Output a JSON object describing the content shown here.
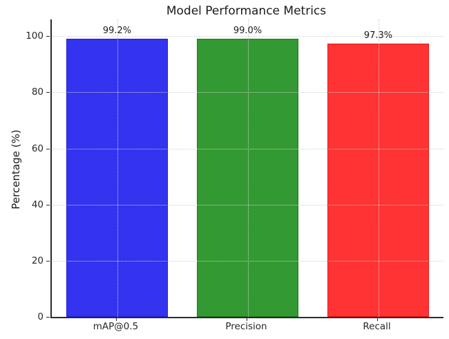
{
  "chart_data": {
    "type": "bar",
    "title": "Model Performance Metrics",
    "ylabel": "Percentage (%)",
    "xlabel": "",
    "categories": [
      "mAP@0.5",
      "Precision",
      "Recall"
    ],
    "values": [
      99.2,
      99.0,
      97.3
    ],
    "value_labels": [
      "99.2%",
      "99.0%",
      "97.3%"
    ],
    "bar_colors": [
      "#3333f0",
      "#339933",
      "#ff3333"
    ],
    "bar_edge_colors": [
      "#1f1fd6",
      "#1e7a1e",
      "#ef1515"
    ],
    "ylim": [
      0,
      106
    ],
    "yticks": [
      "0",
      "20",
      "40",
      "60",
      "80",
      "100"
    ],
    "grid": "dotted, horizontal at yticks and vertical at bar centers, drawn above bars",
    "legend_position": "none",
    "colors": {
      "background": "#ffffff",
      "spine": "#2a2a2a",
      "grid": "#cdcdcd",
      "text": "#1a1a1a"
    }
  }
}
